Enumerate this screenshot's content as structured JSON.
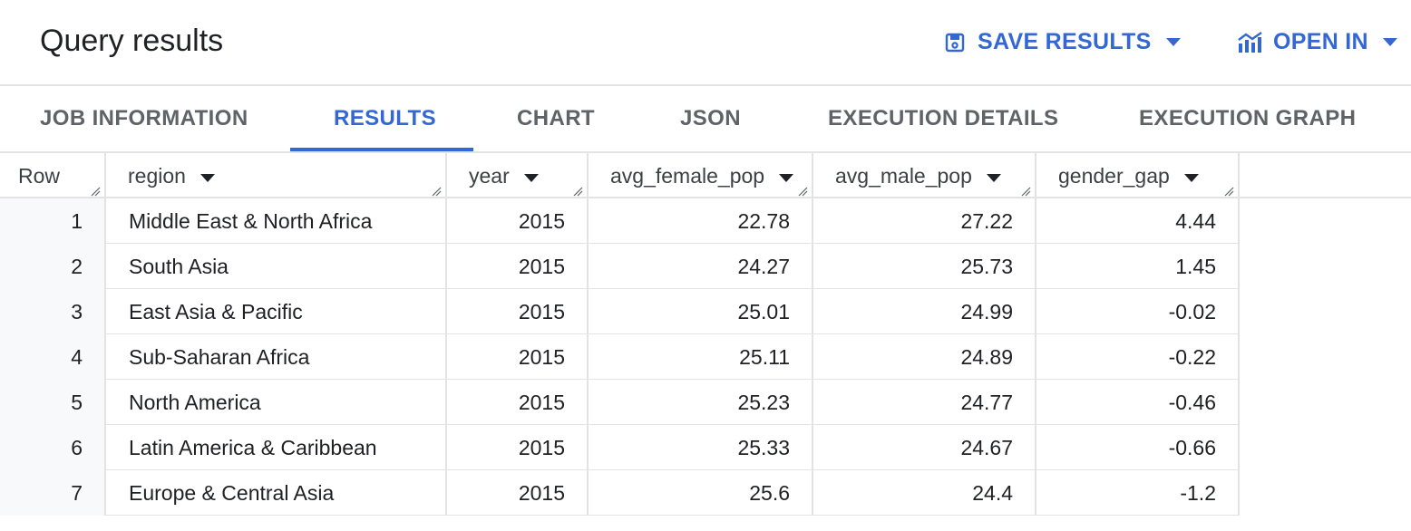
{
  "header": {
    "title": "Query results",
    "save_results_label": "SAVE RESULTS",
    "open_in_label": "OPEN IN",
    "accent_color": "#3367d6"
  },
  "tabs": [
    {
      "label": "JOB INFORMATION",
      "active": false
    },
    {
      "label": "RESULTS",
      "active": true
    },
    {
      "label": "CHART",
      "active": false
    },
    {
      "label": "JSON",
      "active": false
    },
    {
      "label": "EXECUTION DETAILS",
      "active": false
    },
    {
      "label": "EXECUTION GRAPH",
      "active": false
    }
  ],
  "table": {
    "columns": [
      "Row",
      "region",
      "year",
      "avg_female_pop",
      "avg_male_pop",
      "gender_gap"
    ],
    "rows": [
      {
        "row": "1",
        "region": "Middle East & North Africa",
        "year": "2015",
        "avg_female_pop": "22.78",
        "avg_male_pop": "27.22",
        "gender_gap": "4.44"
      },
      {
        "row": "2",
        "region": "South Asia",
        "year": "2015",
        "avg_female_pop": "24.27",
        "avg_male_pop": "25.73",
        "gender_gap": "1.45"
      },
      {
        "row": "3",
        "region": "East Asia & Pacific",
        "year": "2015",
        "avg_female_pop": "25.01",
        "avg_male_pop": "24.99",
        "gender_gap": "-0.02"
      },
      {
        "row": "4",
        "region": "Sub-Saharan Africa",
        "year": "2015",
        "avg_female_pop": "25.11",
        "avg_male_pop": "24.89",
        "gender_gap": "-0.22"
      },
      {
        "row": "5",
        "region": "North America",
        "year": "2015",
        "avg_female_pop": "25.23",
        "avg_male_pop": "24.77",
        "gender_gap": "-0.46"
      },
      {
        "row": "6",
        "region": "Latin America & Caribbean",
        "year": "2015",
        "avg_female_pop": "25.33",
        "avg_male_pop": "24.67",
        "gender_gap": "-0.66"
      },
      {
        "row": "7",
        "region": "Europe & Central Asia",
        "year": "2015",
        "avg_female_pop": "25.6",
        "avg_male_pop": "24.4",
        "gender_gap": "-1.2"
      }
    ]
  }
}
